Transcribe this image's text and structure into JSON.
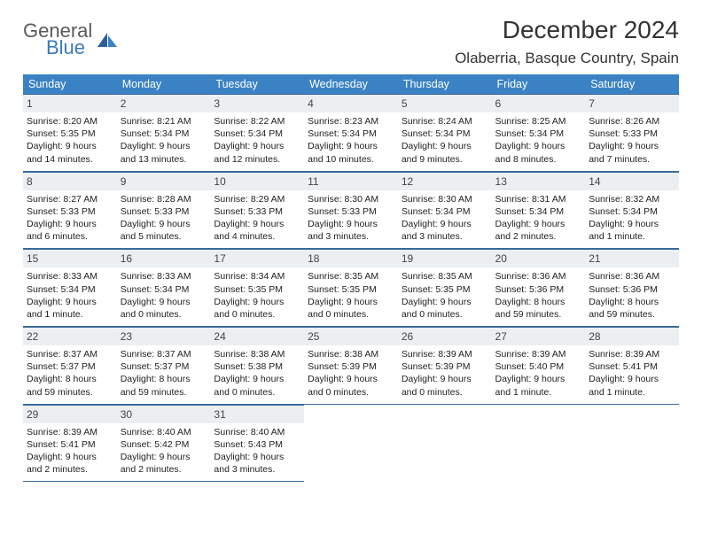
{
  "logo": {
    "word1": "General",
    "word2": "Blue"
  },
  "title": "December 2024",
  "location": "Olaberria, Basque Country, Spain",
  "colors": {
    "header_bg": "#3a82c4",
    "header_text": "#ffffff",
    "daynum_bg": "#eceff1",
    "border": "#3a6a9a",
    "logo_gray": "#5a5a5a",
    "logo_blue": "#3a7ab8"
  },
  "weekdays": [
    "Sunday",
    "Monday",
    "Tuesday",
    "Wednesday",
    "Thursday",
    "Friday",
    "Saturday"
  ],
  "weeks": [
    [
      {
        "n": "1",
        "sr": "Sunrise: 8:20 AM",
        "ss": "Sunset: 5:35 PM",
        "dl": "Daylight: 9 hours and 14 minutes."
      },
      {
        "n": "2",
        "sr": "Sunrise: 8:21 AM",
        "ss": "Sunset: 5:34 PM",
        "dl": "Daylight: 9 hours and 13 minutes."
      },
      {
        "n": "3",
        "sr": "Sunrise: 8:22 AM",
        "ss": "Sunset: 5:34 PM",
        "dl": "Daylight: 9 hours and 12 minutes."
      },
      {
        "n": "4",
        "sr": "Sunrise: 8:23 AM",
        "ss": "Sunset: 5:34 PM",
        "dl": "Daylight: 9 hours and 10 minutes."
      },
      {
        "n": "5",
        "sr": "Sunrise: 8:24 AM",
        "ss": "Sunset: 5:34 PM",
        "dl": "Daylight: 9 hours and 9 minutes."
      },
      {
        "n": "6",
        "sr": "Sunrise: 8:25 AM",
        "ss": "Sunset: 5:34 PM",
        "dl": "Daylight: 9 hours and 8 minutes."
      },
      {
        "n": "7",
        "sr": "Sunrise: 8:26 AM",
        "ss": "Sunset: 5:33 PM",
        "dl": "Daylight: 9 hours and 7 minutes."
      }
    ],
    [
      {
        "n": "8",
        "sr": "Sunrise: 8:27 AM",
        "ss": "Sunset: 5:33 PM",
        "dl": "Daylight: 9 hours and 6 minutes."
      },
      {
        "n": "9",
        "sr": "Sunrise: 8:28 AM",
        "ss": "Sunset: 5:33 PM",
        "dl": "Daylight: 9 hours and 5 minutes."
      },
      {
        "n": "10",
        "sr": "Sunrise: 8:29 AM",
        "ss": "Sunset: 5:33 PM",
        "dl": "Daylight: 9 hours and 4 minutes."
      },
      {
        "n": "11",
        "sr": "Sunrise: 8:30 AM",
        "ss": "Sunset: 5:33 PM",
        "dl": "Daylight: 9 hours and 3 minutes."
      },
      {
        "n": "12",
        "sr": "Sunrise: 8:30 AM",
        "ss": "Sunset: 5:34 PM",
        "dl": "Daylight: 9 hours and 3 minutes."
      },
      {
        "n": "13",
        "sr": "Sunrise: 8:31 AM",
        "ss": "Sunset: 5:34 PM",
        "dl": "Daylight: 9 hours and 2 minutes."
      },
      {
        "n": "14",
        "sr": "Sunrise: 8:32 AM",
        "ss": "Sunset: 5:34 PM",
        "dl": "Daylight: 9 hours and 1 minute."
      }
    ],
    [
      {
        "n": "15",
        "sr": "Sunrise: 8:33 AM",
        "ss": "Sunset: 5:34 PM",
        "dl": "Daylight: 9 hours and 1 minute."
      },
      {
        "n": "16",
        "sr": "Sunrise: 8:33 AM",
        "ss": "Sunset: 5:34 PM",
        "dl": "Daylight: 9 hours and 0 minutes."
      },
      {
        "n": "17",
        "sr": "Sunrise: 8:34 AM",
        "ss": "Sunset: 5:35 PM",
        "dl": "Daylight: 9 hours and 0 minutes."
      },
      {
        "n": "18",
        "sr": "Sunrise: 8:35 AM",
        "ss": "Sunset: 5:35 PM",
        "dl": "Daylight: 9 hours and 0 minutes."
      },
      {
        "n": "19",
        "sr": "Sunrise: 8:35 AM",
        "ss": "Sunset: 5:35 PM",
        "dl": "Daylight: 9 hours and 0 minutes."
      },
      {
        "n": "20",
        "sr": "Sunrise: 8:36 AM",
        "ss": "Sunset: 5:36 PM",
        "dl": "Daylight: 8 hours and 59 minutes."
      },
      {
        "n": "21",
        "sr": "Sunrise: 8:36 AM",
        "ss": "Sunset: 5:36 PM",
        "dl": "Daylight: 8 hours and 59 minutes."
      }
    ],
    [
      {
        "n": "22",
        "sr": "Sunrise: 8:37 AM",
        "ss": "Sunset: 5:37 PM",
        "dl": "Daylight: 8 hours and 59 minutes."
      },
      {
        "n": "23",
        "sr": "Sunrise: 8:37 AM",
        "ss": "Sunset: 5:37 PM",
        "dl": "Daylight: 8 hours and 59 minutes."
      },
      {
        "n": "24",
        "sr": "Sunrise: 8:38 AM",
        "ss": "Sunset: 5:38 PM",
        "dl": "Daylight: 9 hours and 0 minutes."
      },
      {
        "n": "25",
        "sr": "Sunrise: 8:38 AM",
        "ss": "Sunset: 5:39 PM",
        "dl": "Daylight: 9 hours and 0 minutes."
      },
      {
        "n": "26",
        "sr": "Sunrise: 8:39 AM",
        "ss": "Sunset: 5:39 PM",
        "dl": "Daylight: 9 hours and 0 minutes."
      },
      {
        "n": "27",
        "sr": "Sunrise: 8:39 AM",
        "ss": "Sunset: 5:40 PM",
        "dl": "Daylight: 9 hours and 1 minute."
      },
      {
        "n": "28",
        "sr": "Sunrise: 8:39 AM",
        "ss": "Sunset: 5:41 PM",
        "dl": "Daylight: 9 hours and 1 minute."
      }
    ],
    [
      {
        "n": "29",
        "sr": "Sunrise: 8:39 AM",
        "ss": "Sunset: 5:41 PM",
        "dl": "Daylight: 9 hours and 2 minutes."
      },
      {
        "n": "30",
        "sr": "Sunrise: 8:40 AM",
        "ss": "Sunset: 5:42 PM",
        "dl": "Daylight: 9 hours and 2 minutes."
      },
      {
        "n": "31",
        "sr": "Sunrise: 8:40 AM",
        "ss": "Sunset: 5:43 PM",
        "dl": "Daylight: 9 hours and 3 minutes."
      },
      null,
      null,
      null,
      null
    ]
  ]
}
